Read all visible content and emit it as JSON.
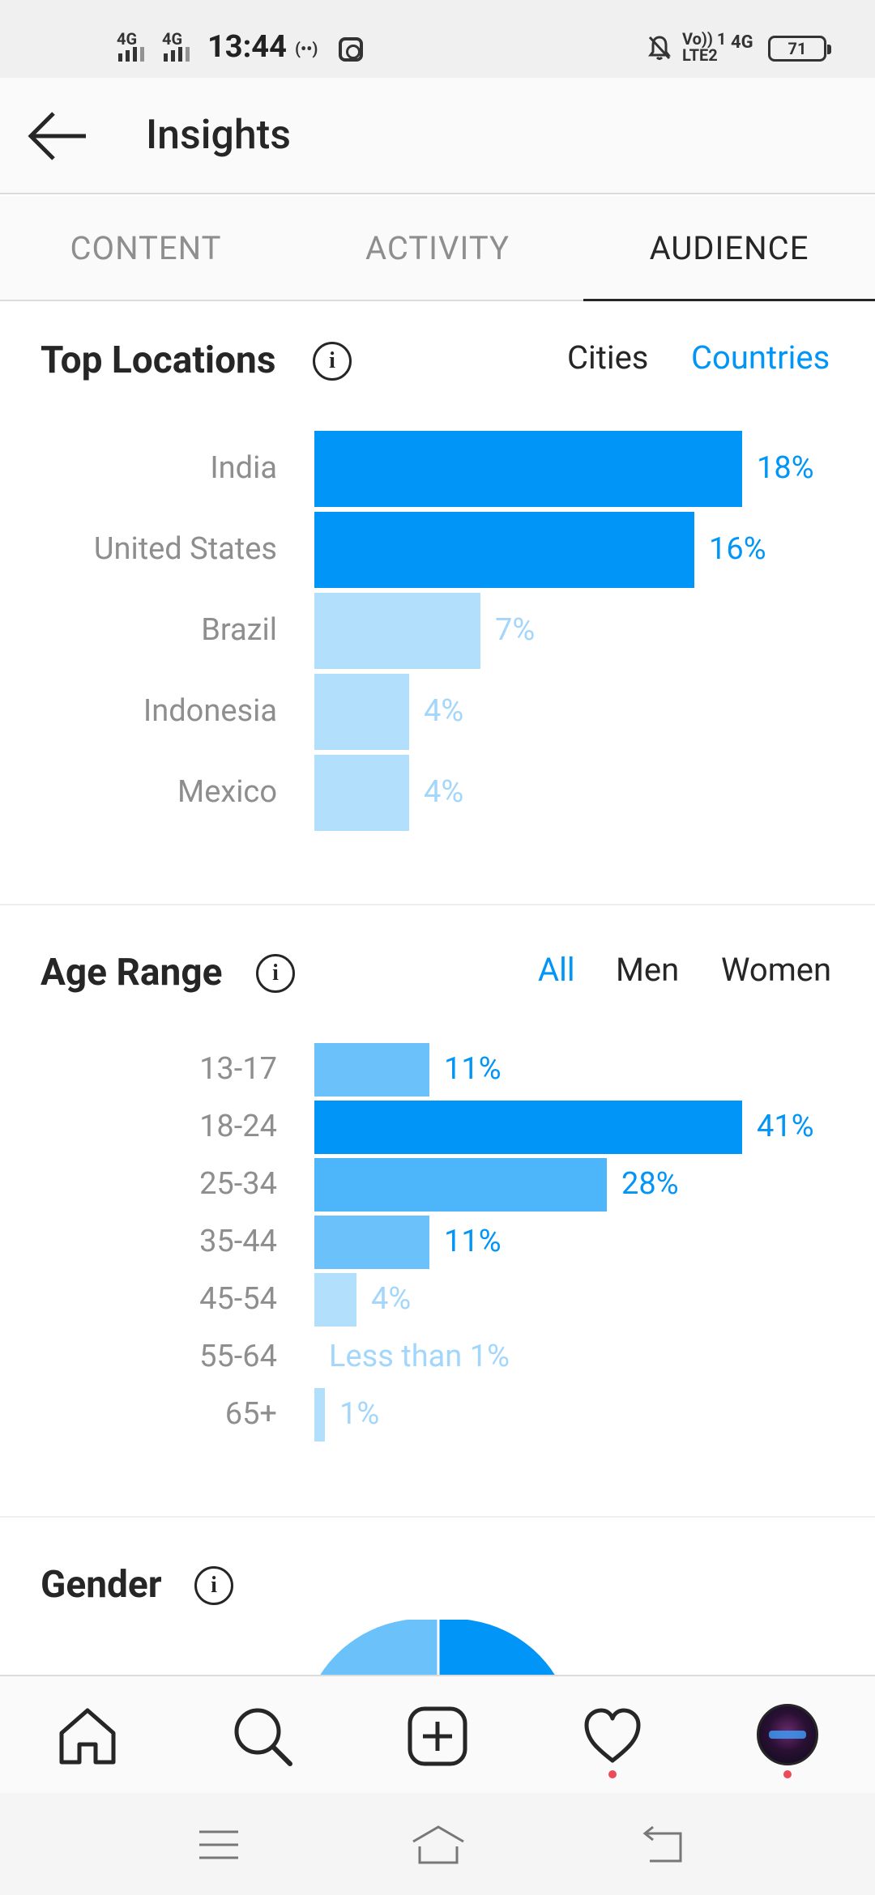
{
  "status_bar": {
    "network1": "4G",
    "network2": "4G",
    "time": "13:44",
    "hotspot": "(••)",
    "volte": "Vo)) 1",
    "lte": "LTE2",
    "network3": "4G",
    "battery": "71"
  },
  "header": {
    "title": "Insights"
  },
  "tabs": [
    {
      "label": "CONTENT",
      "active": false
    },
    {
      "label": "ACTIVITY",
      "active": false
    },
    {
      "label": "AUDIENCE",
      "active": true
    }
  ],
  "top_locations": {
    "title": "Top Locations",
    "filters": [
      {
        "label": "Cities",
        "active": false
      },
      {
        "label": "Countries",
        "active": true
      }
    ],
    "rows": [
      {
        "label": "India",
        "value": 18,
        "display": "18%"
      },
      {
        "label": "United States",
        "value": 16,
        "display": "16%"
      },
      {
        "label": "Brazil",
        "value": 7,
        "display": "7%"
      },
      {
        "label": "Indonesia",
        "value": 4,
        "display": "4%"
      },
      {
        "label": "Mexico",
        "value": 4,
        "display": "4%"
      }
    ]
  },
  "age_range": {
    "title": "Age Range",
    "filters": [
      {
        "label": "All",
        "active": true
      },
      {
        "label": "Men",
        "active": false
      },
      {
        "label": "Women",
        "active": false
      }
    ],
    "rows": [
      {
        "label": "13-17",
        "value": 11,
        "display": "11%"
      },
      {
        "label": "18-24",
        "value": 41,
        "display": "41%"
      },
      {
        "label": "25-34",
        "value": 28,
        "display": "28%"
      },
      {
        "label": "35-44",
        "value": 11,
        "display": "11%"
      },
      {
        "label": "45-54",
        "value": 4,
        "display": "4%"
      },
      {
        "label": "55-64",
        "value": 0,
        "display": "Less than 1%"
      },
      {
        "label": "65+",
        "value": 1,
        "display": "1%"
      }
    ]
  },
  "gender": {
    "title": "Gender"
  },
  "colors": {
    "accent": "#0095f6",
    "bar_strong": "#0095f6",
    "bar_medium": "#4db5f9",
    "bar_light": "#6bc1fa",
    "bar_faint": "#b2dffc",
    "text_faint": "#a3d6fb"
  },
  "bottom_nav": {
    "icons": [
      "home-icon",
      "search-icon",
      "add-post-icon",
      "heart-icon",
      "profile-avatar"
    ]
  },
  "system_nav": {
    "icons": [
      "menu-icon",
      "home-outline-icon",
      "back-return-icon"
    ]
  }
}
